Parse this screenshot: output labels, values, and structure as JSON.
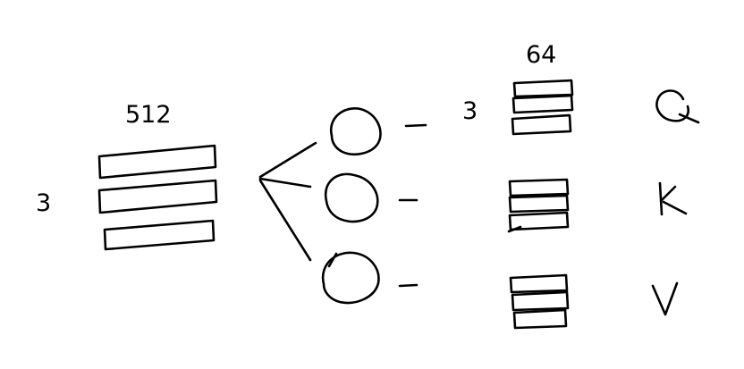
{
  "labels": {
    "input_dim": "512",
    "input_count": "3",
    "head_dim": "64",
    "head_count": "3",
    "q": "Q",
    "k": "K",
    "v": "V"
  },
  "colors": {
    "ink": "#000000",
    "background": "#ffffff"
  }
}
